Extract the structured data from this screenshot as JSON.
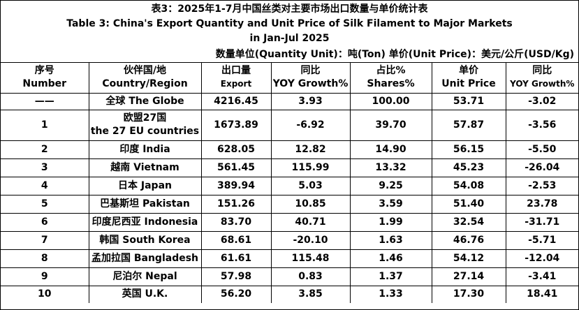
{
  "header": {
    "title_cn": "表3：2025年1-7月中国丝类对主要市场出口数量与单价统计表",
    "title_en_1": "Table 3: China's Export Quantity and Unit Price of Silk Filament to Major Markets",
    "title_en_2": "in Jan-Jul 2025",
    "units": "数量单位(Quantity Unit)：吨(Ton)  单价(Unit Price)：美元/公斤(USD/Kg)"
  },
  "table": {
    "columns": [
      [
        "序号",
        "Number"
      ],
      [
        "伙伴国/地",
        "Country/Region"
      ],
      [
        "出口量",
        "Export"
      ],
      [
        "同比",
        "YOY Growth%"
      ],
      [
        "占比%",
        "Shares%"
      ],
      [
        "单价",
        "Unit Price"
      ],
      [
        "同比",
        "YOY Growth%"
      ]
    ],
    "rows": [
      [
        "——",
        [
          "全球 The Globe"
        ],
        "4216.45",
        "3.93",
        "100.00",
        "53.71",
        "-3.02"
      ],
      [
        "1",
        [
          "欧盟27国",
          "the 27 EU countries"
        ],
        "1673.89",
        "-6.92",
        "39.70",
        "57.87",
        "-3.56"
      ],
      [
        "2",
        [
          "印度 India"
        ],
        "628.05",
        "12.82",
        "14.90",
        "56.15",
        "-5.50"
      ],
      [
        "3",
        [
          "越南 Vietnam"
        ],
        "561.45",
        "115.99",
        "13.32",
        "45.23",
        "-26.04"
      ],
      [
        "4",
        [
          "日本 Japan"
        ],
        "389.94",
        "5.03",
        "9.25",
        "54.08",
        "-2.53"
      ],
      [
        "5",
        [
          "巴基斯坦 Pakistan"
        ],
        "151.26",
        "10.85",
        "3.59",
        "51.40",
        "23.78"
      ],
      [
        "6",
        [
          "印度尼西亚 Indonesia"
        ],
        "83.70",
        "40.71",
        "1.99",
        "32.54",
        "-31.71"
      ],
      [
        "7",
        [
          "韩国 South Korea"
        ],
        "68.61",
        "-20.10",
        "1.63",
        "46.76",
        "-5.71"
      ],
      [
        "8",
        [
          "孟加拉国 Bangladesh"
        ],
        "61.61",
        "115.48",
        "1.46",
        "54.12",
        "-12.04"
      ],
      [
        "9",
        [
          "尼泊尔 Nepal"
        ],
        "57.98",
        "0.83",
        "1.37",
        "27.14",
        "-3.41"
      ],
      [
        "10",
        [
          "英国 U.K."
        ],
        "56.20",
        "3.85",
        "1.33",
        "17.30",
        "18.41"
      ]
    ]
  }
}
